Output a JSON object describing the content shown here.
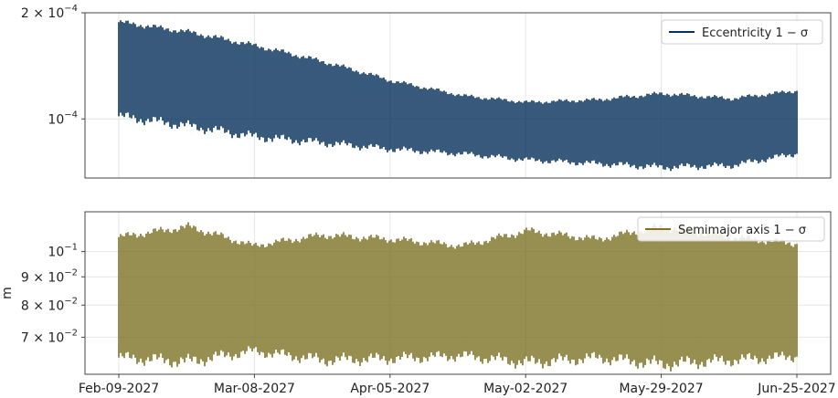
{
  "chart_data": [
    {
      "type": "line",
      "panel": "top",
      "yscale": "log",
      "ylabel": "",
      "xlabel": "",
      "ylim": [
        6.8e-05,
        0.0002
      ],
      "y_ticks": [
        {
          "value": 0.0002,
          "base": "2 × 10",
          "exp": "−4"
        },
        {
          "value": 0.0001,
          "base": "10",
          "exp": "−4"
        }
      ],
      "grid": true,
      "legend": {
        "position": "top-right",
        "label": "Eccentricity 1 − σ"
      },
      "color": "#06305a",
      "x_range": [
        "2027-02-09",
        "2027-06-25"
      ],
      "series": [
        {
          "name": "Eccentricity 1 − σ",
          "x": [
            "2027-02-09",
            "2027-02-23",
            "2027-03-08",
            "2027-03-22",
            "2027-04-05",
            "2027-04-19",
            "2027-05-02",
            "2027-05-16",
            "2027-05-29",
            "2027-06-12",
            "2027-06-25"
          ],
          "upper": [
            0.000192,
            0.00018,
            0.000165,
            0.000148,
            0.00013,
            0.000118,
            0.000113,
            0.000115,
            0.00012,
            0.000116,
            0.000122
          ],
          "lower": [
            9.8e-05,
            9.2e-05,
            8.6e-05,
            8.3e-05,
            8e-05,
            7.8e-05,
            7.5e-05,
            7.3e-05,
            7.1e-05,
            7.2e-05,
            7.8e-05
          ]
        }
      ]
    },
    {
      "type": "line",
      "panel": "bottom",
      "yscale": "log",
      "ylabel": "m",
      "xlabel": "",
      "ylim": [
        0.06,
        0.118
      ],
      "y_ticks": [
        {
          "value": 0.1,
          "base": "10",
          "exp": "−1"
        },
        {
          "value": 0.09,
          "base": "9 × 10",
          "exp": "−2"
        },
        {
          "value": 0.08,
          "base": "8 × 10",
          "exp": "−2"
        },
        {
          "value": 0.07,
          "base": "7 × 10",
          "exp": "−2"
        }
      ],
      "grid": true,
      "legend": {
        "position": "top-right",
        "label": "Semimajor axis 1 − σ"
      },
      "color": "#7d7325",
      "x_range": [
        "2027-02-09",
        "2027-06-25"
      ],
      "x_ticks": [
        "Feb-09-2027",
        "Mar-08-2027",
        "Apr-05-2027",
        "May-02-2027",
        "May-29-2027",
        "Jun-25-2027"
      ],
      "series": [
        {
          "name": "Semimajor axis 1 − σ",
          "x": [
            "2027-02-09",
            "2027-02-23",
            "2027-03-08",
            "2027-03-22",
            "2027-04-05",
            "2027-04-19",
            "2027-05-02",
            "2027-05-16",
            "2027-05-29",
            "2027-06-12",
            "2027-06-25"
          ],
          "upper": [
            0.108,
            0.113,
            0.104,
            0.109,
            0.107,
            0.104,
            0.111,
            0.107,
            0.113,
            0.108,
            0.105
          ],
          "lower": [
            0.0625,
            0.0612,
            0.0645,
            0.0618,
            0.0623,
            0.0632,
            0.061,
            0.0625,
            0.0605,
            0.0618,
            0.063
          ]
        }
      ]
    }
  ]
}
